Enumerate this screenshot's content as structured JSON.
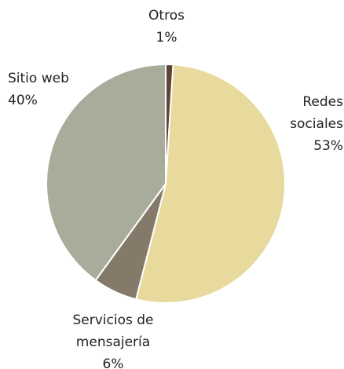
{
  "chart_data": {
    "type": "pie",
    "categories": [
      "Otros",
      "Redes sociales",
      "Servicios de mensajería",
      "Sitio web"
    ],
    "values": [
      1,
      53,
      6,
      40
    ],
    "value_labels": [
      "1%",
      "53%",
      "6%",
      "40%"
    ],
    "colors": [
      "#5b4538",
      "#e8d99c",
      "#857a6a",
      "#a7ad9a"
    ]
  }
}
